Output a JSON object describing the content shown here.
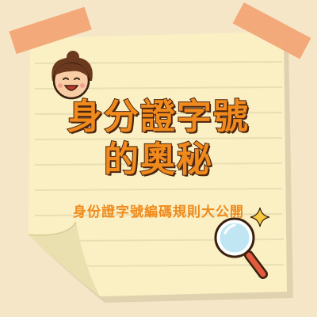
{
  "title_line1": "身分證字號",
  "title_line2": "的奧秘",
  "subtitle": "身份證字號編碼規則大公開",
  "colors": {
    "background": "#f6e6c8",
    "paper": "#faf0c3",
    "paper_lines": "#e8dfb4",
    "tape": "#f2a576",
    "title": "#f08a1c",
    "title_outline": "#4a2410",
    "subtitle": "#f08a1c",
    "sparkle": "#f6c93e"
  },
  "icons": [
    "cartoon-face-icon",
    "magnifying-glass-icon",
    "sparkle-icon"
  ]
}
